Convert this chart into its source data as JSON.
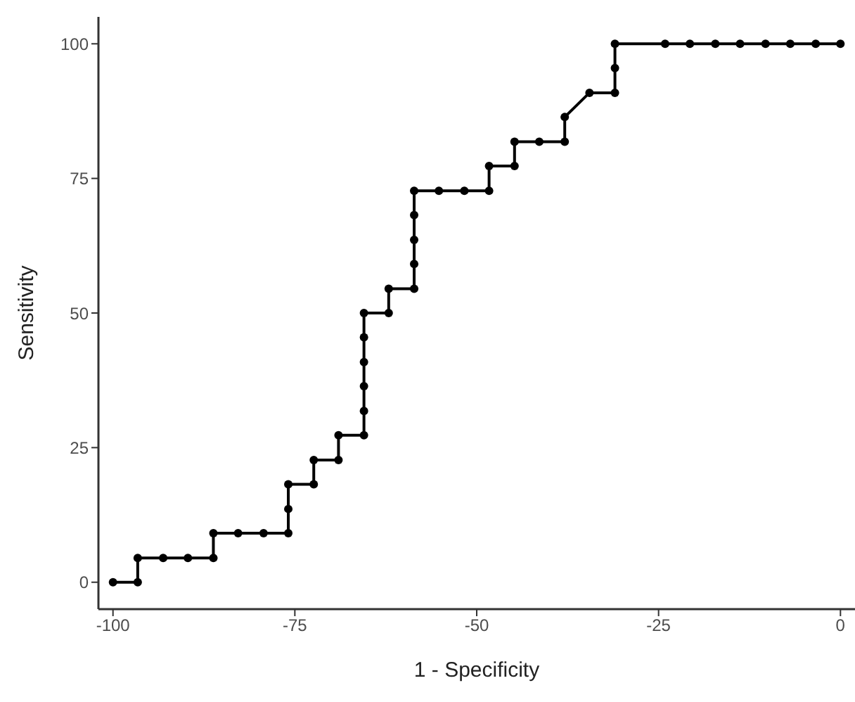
{
  "chart_data": {
    "type": "line",
    "xlabel": "1 - Specificity",
    "ylabel": "Sensitivity",
    "x": [
      -100,
      -96.6,
      -96.6,
      -93.1,
      -89.7,
      -86.2,
      -86.2,
      -82.8,
      -79.3,
      -75.9,
      -75.9,
      -75.9,
      -72.4,
      -72.4,
      -69.0,
      -69.0,
      -65.5,
      -65.5,
      -65.5,
      -65.5,
      -65.5,
      -65.5,
      -62.1,
      -62.1,
      -58.6,
      -58.6,
      -58.6,
      -58.6,
      -58.6,
      -55.2,
      -51.7,
      -48.3,
      -48.3,
      -44.8,
      -44.8,
      -41.4,
      -37.9,
      -37.9,
      -34.5,
      -31.0,
      -31.0,
      -31.0,
      -24.1,
      -20.7,
      -17.2,
      -13.8,
      -10.3,
      -6.9,
      -3.4,
      0
    ],
    "series": [
      {
        "color": "#000000",
        "values": [
          0,
          0,
          4.5,
          4.5,
          4.5,
          4.5,
          9.1,
          9.1,
          9.1,
          9.1,
          13.6,
          18.2,
          18.2,
          22.7,
          22.7,
          27.3,
          27.3,
          31.8,
          36.4,
          40.9,
          45.5,
          50,
          50,
          54.5,
          54.5,
          59.1,
          63.6,
          68.2,
          72.7,
          72.7,
          72.7,
          72.7,
          77.3,
          77.3,
          81.8,
          81.8,
          81.8,
          86.4,
          90.9,
          90.9,
          95.5,
          100,
          100,
          100,
          100,
          100,
          100,
          100,
          100,
          100
        ]
      }
    ],
    "xlim": [
      -102,
      2
    ],
    "ylim": [
      -5,
      105
    ],
    "xticks": [
      -100,
      -75,
      -50,
      -25,
      0
    ],
    "yticks": [
      0,
      25,
      50,
      75,
      100
    ],
    "grid": false,
    "legend": false,
    "marker": "circle",
    "line_style": "solid"
  }
}
